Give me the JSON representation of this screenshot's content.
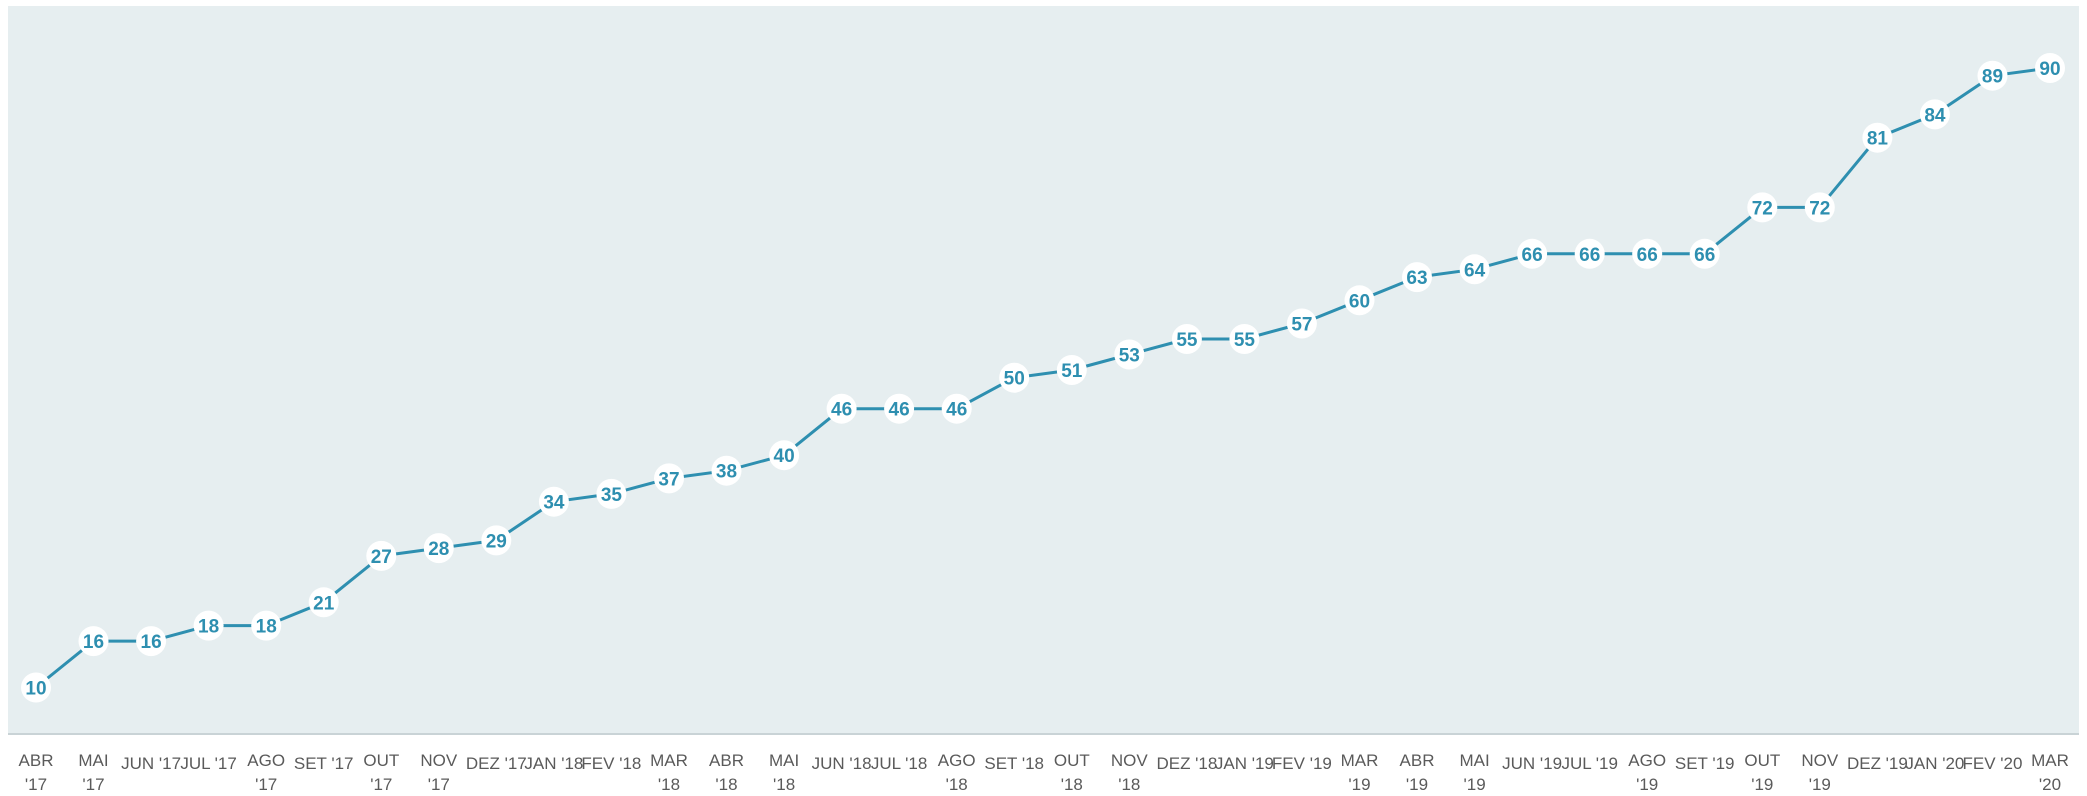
{
  "chart_data": {
    "type": "line",
    "title": "",
    "xlabel": "",
    "ylabel": "",
    "categories": [
      "ABR '17",
      "MAI '17",
      "JUN '17",
      "JUL '17",
      "AGO '17",
      "SET '17",
      "OUT '17",
      "NOV '17",
      "DEZ '17",
      "JAN '18",
      "FEV '18",
      "MAR '18",
      "ABR '18",
      "MAI '18",
      "JUN '18",
      "JUL '18",
      "AGO '18",
      "SET '18",
      "OUT '18",
      "NOV '18",
      "DEZ '18",
      "JAN '19",
      "FEV '19",
      "MAR '19",
      "ABR '19",
      "MAI '19",
      "JUN '19",
      "JUL '19",
      "AGO '19",
      "SET '19",
      "OUT '19",
      "NOV '19",
      "DEZ '19",
      "JAN '20",
      "FEV '20",
      "MAR '20"
    ],
    "series": [
      {
        "values": [
          10,
          16,
          16,
          18,
          18,
          21,
          27,
          28,
          29,
          34,
          35,
          37,
          38,
          40,
          46,
          46,
          46,
          50,
          51,
          53,
          55,
          55,
          57,
          60,
          63,
          64,
          66,
          66,
          66,
          66,
          72,
          72,
          81,
          84,
          89,
          90
        ]
      }
    ],
    "ylim": [
      4,
      98
    ],
    "grid": false,
    "legend": "none",
    "colors": {
      "line": "#2e8fb0",
      "label": "#2e8fb0",
      "plot_background": "#e6eef0",
      "marker_fill": "#ffffff",
      "tick_text": "#5a5a5a"
    }
  }
}
